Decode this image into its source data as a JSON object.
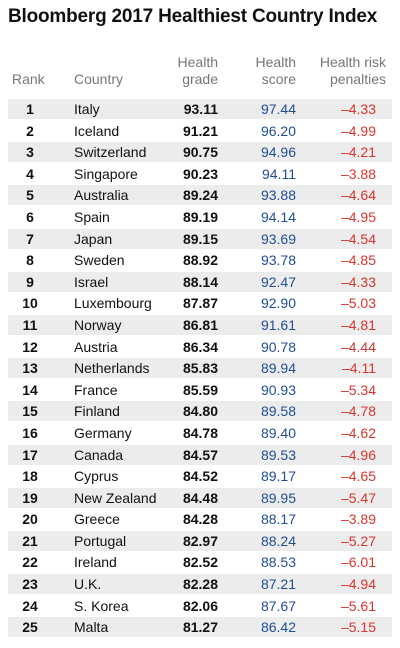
{
  "chart_data": {
    "type": "table",
    "title": "Bloomberg 2017 Healthiest Country Index",
    "columns": [
      "Rank",
      "Country",
      "Health grade",
      "Health score",
      "Health risk penalties"
    ],
    "header_lines": {
      "rank": "Rank",
      "country": "Country",
      "grade_1": "Health",
      "grade_2": "grade",
      "score_1": "Health",
      "score_2": "score",
      "pen_1": "Health risk",
      "pen_2": "penalties"
    },
    "colors": {
      "score": "#1f4e96",
      "penalty": "#d9342b",
      "shade": "#ececec"
    },
    "rows": [
      {
        "rank": "1",
        "country": "Italy",
        "grade": "93.11",
        "score": "97.44",
        "penalty": "–4.33"
      },
      {
        "rank": "2",
        "country": "Iceland",
        "grade": "91.21",
        "score": "96.20",
        "penalty": "–4.99"
      },
      {
        "rank": "3",
        "country": "Switzerland",
        "grade": "90.75",
        "score": "94.96",
        "penalty": "–4.21"
      },
      {
        "rank": "4",
        "country": "Singapore",
        "grade": "90.23",
        "score": "94.11",
        "penalty": "–3.88"
      },
      {
        "rank": "5",
        "country": "Australia",
        "grade": "89.24",
        "score": "93.88",
        "penalty": "–4.64"
      },
      {
        "rank": "6",
        "country": "Spain",
        "grade": "89.19",
        "score": "94.14",
        "penalty": "–4.95"
      },
      {
        "rank": "7",
        "country": "Japan",
        "grade": "89.15",
        "score": "93.69",
        "penalty": "–4.54"
      },
      {
        "rank": "8",
        "country": "Sweden",
        "grade": "88.92",
        "score": "93.78",
        "penalty": "–4.85"
      },
      {
        "rank": "9",
        "country": "Israel",
        "grade": "88.14",
        "score": "92.47",
        "penalty": "–4.33"
      },
      {
        "rank": "10",
        "country": "Luxembourg",
        "grade": "87.87",
        "score": "92.90",
        "penalty": "–5.03"
      },
      {
        "rank": "11",
        "country": "Norway",
        "grade": "86.81",
        "score": "91.61",
        "penalty": "–4.81"
      },
      {
        "rank": "12",
        "country": "Austria",
        "grade": "86.34",
        "score": "90.78",
        "penalty": "–4.44"
      },
      {
        "rank": "13",
        "country": "Netherlands",
        "grade": "85.83",
        "score": "89.94",
        "penalty": "–4.11"
      },
      {
        "rank": "14",
        "country": "France",
        "grade": "85.59",
        "score": "90.93",
        "penalty": "–5.34"
      },
      {
        "rank": "15",
        "country": "Finland",
        "grade": "84.80",
        "score": "89.58",
        "penalty": "–4.78"
      },
      {
        "rank": "16",
        "country": "Germany",
        "grade": "84.78",
        "score": "89.40",
        "penalty": "–4.62"
      },
      {
        "rank": "17",
        "country": "Canada",
        "grade": "84.57",
        "score": "89.53",
        "penalty": "–4.96"
      },
      {
        "rank": "18",
        "country": "Cyprus",
        "grade": "84.52",
        "score": "89.17",
        "penalty": "–4.65"
      },
      {
        "rank": "19",
        "country": "New Zealand",
        "grade": "84.48",
        "score": "89.95",
        "penalty": "–5.47"
      },
      {
        "rank": "20",
        "country": "Greece",
        "grade": "84.28",
        "score": "88.17",
        "penalty": "–3.89"
      },
      {
        "rank": "21",
        "country": "Portugal",
        "grade": "82.97",
        "score": "88.24",
        "penalty": "–5.27"
      },
      {
        "rank": "22",
        "country": "Ireland",
        "grade": "82.52",
        "score": "88.53",
        "penalty": "–6.01"
      },
      {
        "rank": "23",
        "country": "U.K.",
        "grade": "82.28",
        "score": "87.21",
        "penalty": "–4.94"
      },
      {
        "rank": "24",
        "country": "S. Korea",
        "grade": "82.06",
        "score": "87.67",
        "penalty": "–5.61"
      },
      {
        "rank": "25",
        "country": "Malta",
        "grade": "81.27",
        "score": "86.42",
        "penalty": "–5.15"
      }
    ]
  }
}
